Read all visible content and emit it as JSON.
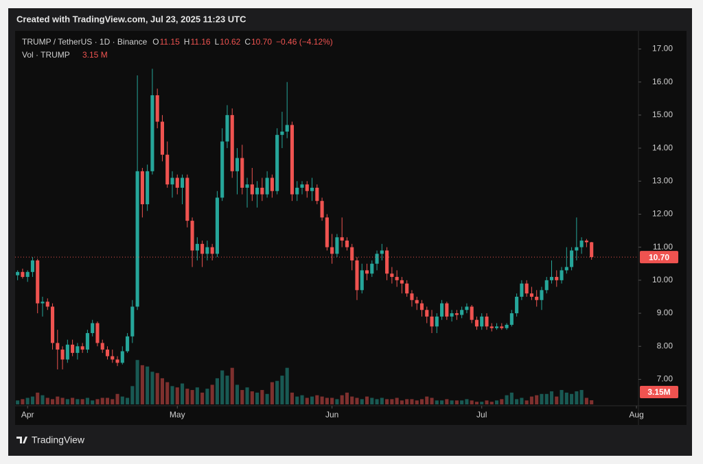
{
  "chart_data": {
    "type": "candlestick",
    "title": "Created with TradingView.com, Jul 23, 2025 11:23 UTC",
    "symbol": "TRUMP / TetherUS · 1D · Binance",
    "ohlc_legend": [
      {
        "key": "O",
        "value": "11.15"
      },
      {
        "key": "H",
        "value": "11.16"
      },
      {
        "key": "L",
        "value": "10.62"
      },
      {
        "key": "C",
        "value": "10.70"
      }
    ],
    "change": "−0.46 (−4.12%)",
    "volume_title": "Vol · TRUMP",
    "volume_value": "3.15 M",
    "last_price_label": "10.70",
    "last_volume_label": "3.15M",
    "footer": "TradingView",
    "up_color": "#26a69a",
    "down_color": "#ef5350",
    "grid": false,
    "ylim": [
      6.2,
      17.55
    ],
    "yticks": [
      {
        "value": 7,
        "label": "7.00"
      },
      {
        "value": 8,
        "label": "8.00"
      },
      {
        "value": 9,
        "label": "9.00"
      },
      {
        "value": 10,
        "label": "10.00"
      },
      {
        "value": 11,
        "label": "11.00"
      },
      {
        "value": 12,
        "label": "12.00"
      },
      {
        "value": 13,
        "label": "13.00"
      },
      {
        "value": 14,
        "label": "14.00"
      },
      {
        "value": 15,
        "label": "15.00"
      },
      {
        "value": 16,
        "label": "16.00"
      },
      {
        "value": 17,
        "label": "17.00"
      }
    ],
    "xlim": [
      -0.5,
      124.4
    ],
    "xticks": [
      {
        "value": 2,
        "label": "Apr"
      },
      {
        "value": 32,
        "label": "May"
      },
      {
        "value": 63,
        "label": "Jun"
      },
      {
        "value": 93,
        "label": "Jul"
      },
      {
        "value": 124,
        "label": "Aug"
      }
    ],
    "volume_lim": [
      0,
      42
    ],
    "candles": [
      [
        10.15,
        10.3,
        10.0,
        10.25
      ],
      [
        10.25,
        10.35,
        10.05,
        10.1
      ],
      [
        10.1,
        10.3,
        9.95,
        10.25
      ],
      [
        10.25,
        10.7,
        10.1,
        10.6
      ],
      [
        10.6,
        10.65,
        9.0,
        9.3
      ],
      [
        9.3,
        9.5,
        8.9,
        9.35
      ],
      [
        9.35,
        9.45,
        9.1,
        9.2
      ],
      [
        9.2,
        9.3,
        7.9,
        8.1
      ],
      [
        8.1,
        8.5,
        7.3,
        7.9
      ],
      [
        7.9,
        8.0,
        7.3,
        7.6
      ],
      [
        7.6,
        8.2,
        7.5,
        8.05
      ],
      [
        8.05,
        8.2,
        7.7,
        7.8
      ],
      [
        7.8,
        8.1,
        7.6,
        8.0
      ],
      [
        8.0,
        8.1,
        7.8,
        7.9
      ],
      [
        7.9,
        8.5,
        7.8,
        8.4
      ],
      [
        8.4,
        8.8,
        8.3,
        8.7
      ],
      [
        8.7,
        8.75,
        8.0,
        8.1
      ],
      [
        8.1,
        8.2,
        7.8,
        7.9
      ],
      [
        7.9,
        8.0,
        7.6,
        7.7
      ],
      [
        7.7,
        7.9,
        7.5,
        7.6
      ],
      [
        7.6,
        7.7,
        7.4,
        7.5
      ],
      [
        7.5,
        8.0,
        7.45,
        7.85
      ],
      [
        7.85,
        8.4,
        7.8,
        8.3
      ],
      [
        8.3,
        9.4,
        8.1,
        9.2
      ],
      [
        9.2,
        16.2,
        9.1,
        13.3
      ],
      [
        13.3,
        13.4,
        11.9,
        12.3
      ],
      [
        12.3,
        13.5,
        12.1,
        13.3
      ],
      [
        13.3,
        16.4,
        13.2,
        15.6
      ],
      [
        15.6,
        15.8,
        14.6,
        14.8
      ],
      [
        14.8,
        15.0,
        13.6,
        13.8
      ],
      [
        13.8,
        14.2,
        12.8,
        12.9
      ],
      [
        12.9,
        13.3,
        12.5,
        13.1
      ],
      [
        13.1,
        13.2,
        12.6,
        12.8
      ],
      [
        12.8,
        13.2,
        12.3,
        13.1
      ],
      [
        13.1,
        13.2,
        11.6,
        11.8
      ],
      [
        11.8,
        11.9,
        10.4,
        10.9
      ],
      [
        10.9,
        11.3,
        10.6,
        11.1
      ],
      [
        11.1,
        11.2,
        10.4,
        10.8
      ],
      [
        10.8,
        11.2,
        10.6,
        11.0
      ],
      [
        11.0,
        11.1,
        10.6,
        10.8
      ],
      [
        10.8,
        12.7,
        10.7,
        12.5
      ],
      [
        12.5,
        14.6,
        12.4,
        14.2
      ],
      [
        14.2,
        15.3,
        14.0,
        15.0
      ],
      [
        15.0,
        15.2,
        13.1,
        13.3
      ],
      [
        13.3,
        14.0,
        12.6,
        13.7
      ],
      [
        13.7,
        14.1,
        12.6,
        12.8
      ],
      [
        12.8,
        13.1,
        12.2,
        12.9
      ],
      [
        12.9,
        13.4,
        12.4,
        12.6
      ],
      [
        12.6,
        13.0,
        12.2,
        12.8
      ],
      [
        12.8,
        13.1,
        12.4,
        12.6
      ],
      [
        12.6,
        13.3,
        12.5,
        13.1
      ],
      [
        13.1,
        13.2,
        12.5,
        12.7
      ],
      [
        12.7,
        14.6,
        12.6,
        14.4
      ],
      [
        14.4,
        15.1,
        14.0,
        14.5
      ],
      [
        14.5,
        16.0,
        14.3,
        14.7
      ],
      [
        14.7,
        14.8,
        12.4,
        12.6
      ],
      [
        12.6,
        13.0,
        12.4,
        12.8
      ],
      [
        12.8,
        13.0,
        12.6,
        12.9
      ],
      [
        12.9,
        13.0,
        12.5,
        12.7
      ],
      [
        12.7,
        13.1,
        12.4,
        12.8
      ],
      [
        12.8,
        12.9,
        12.3,
        12.4
      ],
      [
        12.4,
        12.5,
        11.8,
        11.9
      ],
      [
        11.9,
        12.0,
        10.9,
        11.0
      ],
      [
        11.0,
        11.4,
        10.5,
        10.8
      ],
      [
        10.8,
        11.4,
        10.7,
        11.3
      ],
      [
        11.3,
        11.9,
        11.0,
        11.2
      ],
      [
        11.2,
        11.3,
        10.9,
        11.0
      ],
      [
        11.0,
        11.1,
        10.3,
        10.6
      ],
      [
        10.6,
        10.7,
        9.4,
        9.7
      ],
      [
        9.7,
        10.5,
        9.6,
        10.3
      ],
      [
        10.3,
        10.5,
        10.0,
        10.2
      ],
      [
        10.2,
        10.6,
        10.1,
        10.5
      ],
      [
        10.5,
        10.9,
        10.3,
        10.8
      ],
      [
        10.8,
        11.1,
        10.6,
        10.9
      ],
      [
        10.9,
        11.0,
        10.0,
        10.2
      ],
      [
        10.2,
        10.4,
        9.9,
        10.1
      ],
      [
        10.1,
        10.3,
        9.8,
        10.0
      ],
      [
        10.0,
        10.1,
        9.6,
        9.9
      ],
      [
        9.9,
        10.0,
        9.5,
        9.6
      ],
      [
        9.6,
        9.7,
        9.2,
        9.4
      ],
      [
        9.4,
        9.5,
        9.1,
        9.3
      ],
      [
        9.3,
        9.4,
        8.9,
        9.1
      ],
      [
        9.1,
        9.2,
        8.7,
        8.9
      ],
      [
        8.9,
        9.1,
        8.4,
        8.6
      ],
      [
        8.6,
        9.0,
        8.4,
        8.9
      ],
      [
        8.9,
        9.4,
        8.8,
        9.3
      ],
      [
        9.3,
        9.35,
        8.8,
        8.9
      ],
      [
        8.9,
        9.1,
        8.75,
        9.0
      ],
      [
        9.0,
        9.1,
        8.8,
        8.95
      ],
      [
        8.95,
        9.2,
        8.85,
        9.1
      ],
      [
        9.1,
        9.3,
        9.0,
        9.2
      ],
      [
        9.2,
        9.25,
        8.7,
        8.8
      ],
      [
        8.8,
        8.9,
        8.5,
        8.6
      ],
      [
        8.6,
        9.0,
        8.5,
        8.9
      ],
      [
        8.9,
        9.0,
        8.5,
        8.6
      ],
      [
        8.6,
        8.7,
        8.45,
        8.55
      ],
      [
        8.55,
        8.7,
        8.5,
        8.6
      ],
      [
        8.6,
        8.7,
        8.5,
        8.55
      ],
      [
        8.55,
        8.7,
        8.5,
        8.65
      ],
      [
        8.65,
        9.1,
        8.6,
        9.0
      ],
      [
        9.0,
        9.6,
        8.9,
        9.5
      ],
      [
        9.5,
        10.0,
        9.4,
        9.9
      ],
      [
        9.9,
        10.0,
        9.5,
        9.6
      ],
      [
        9.6,
        9.8,
        9.4,
        9.5
      ],
      [
        9.5,
        9.7,
        9.2,
        9.4
      ],
      [
        9.4,
        9.8,
        9.1,
        9.7
      ],
      [
        9.7,
        10.1,
        9.6,
        10.0
      ],
      [
        10.0,
        10.6,
        9.9,
        10.1
      ],
      [
        10.1,
        10.3,
        9.8,
        10.0
      ],
      [
        10.0,
        10.4,
        9.9,
        10.3
      ],
      [
        10.3,
        11.0,
        10.2,
        10.4
      ],
      [
        10.4,
        11.0,
        10.3,
        10.9
      ],
      [
        10.9,
        11.9,
        10.6,
        11.0
      ],
      [
        11.0,
        11.3,
        10.8,
        11.2
      ],
      [
        11.2,
        11.25,
        11.0,
        11.15
      ],
      [
        11.15,
        11.16,
        10.62,
        10.7
      ]
    ],
    "volume": [
      3,
      4,
      5,
      6,
      9,
      7,
      5,
      4,
      6,
      5,
      4,
      5,
      4,
      4,
      5,
      3,
      4,
      5,
      5,
      4,
      8,
      6,
      5,
      14,
      34,
      30,
      29,
      25,
      24,
      20,
      17,
      14,
      13,
      16,
      12,
      11,
      13,
      9,
      12,
      15,
      20,
      26,
      22,
      28,
      15,
      11,
      13,
      10,
      9,
      11,
      8,
      17,
      18,
      22,
      28,
      9,
      6,
      7,
      5,
      6,
      7,
      6,
      5,
      5,
      4,
      7,
      9,
      6,
      5,
      4,
      6,
      5,
      4,
      5,
      4,
      4,
      5,
      3,
      4,
      4,
      3,
      4,
      6,
      5,
      3,
      3,
      4,
      3,
      3,
      3,
      4,
      3,
      2,
      2,
      3,
      2,
      3,
      4,
      7,
      9,
      4,
      5,
      3,
      6,
      7,
      8,
      8,
      10,
      6,
      11,
      9,
      8,
      10,
      11,
      5,
      3.15
    ]
  }
}
